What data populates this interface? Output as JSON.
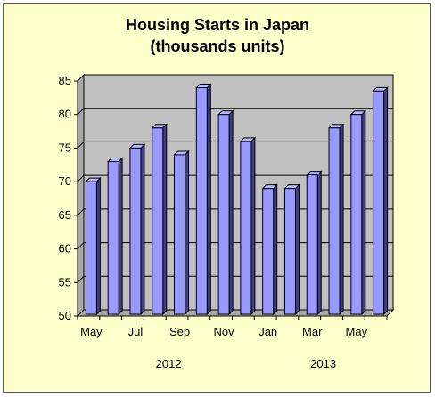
{
  "chart_data": {
    "type": "bar",
    "title": "Housing Starts in Japan",
    "subtitle": "(thousands units)",
    "xlabel": "",
    "ylabel": "",
    "ylim": [
      50,
      85
    ],
    "yticks": [
      50,
      55,
      60,
      65,
      70,
      75,
      80,
      85
    ],
    "grid": true,
    "legend": "none",
    "categories": [
      "May 2012",
      "Jun 2012",
      "Jul 2012",
      "Aug 2012",
      "Sep 2012",
      "Oct 2012",
      "Nov 2012",
      "Dec 2012",
      "Jan 2013",
      "Feb 2013",
      "Mar 2013",
      "Apr 2013",
      "May 2013",
      "Jun 2013"
    ],
    "tick_labels": [
      "May",
      "",
      "Jul",
      "",
      "Sep",
      "",
      "Nov",
      "",
      "Jan",
      "",
      "Mar",
      "",
      "May",
      ""
    ],
    "group_labels": [
      {
        "label": "2012",
        "from": 0,
        "to": 7
      },
      {
        "label": "2013",
        "from": 8,
        "to": 13
      }
    ],
    "values": [
      70,
      73,
      75,
      78,
      74,
      84,
      80,
      76,
      69,
      69,
      71,
      78,
      80,
      83.5
    ],
    "colors": {
      "bar_front": "#9999ff",
      "bar_side": "#3d3d8f",
      "bar_top": "#b8b8ff",
      "plot_back": "#c0c0c0",
      "plot_side": "#a8a8a8",
      "floor": "#a8a8a8",
      "background": "#ffffcc"
    }
  }
}
